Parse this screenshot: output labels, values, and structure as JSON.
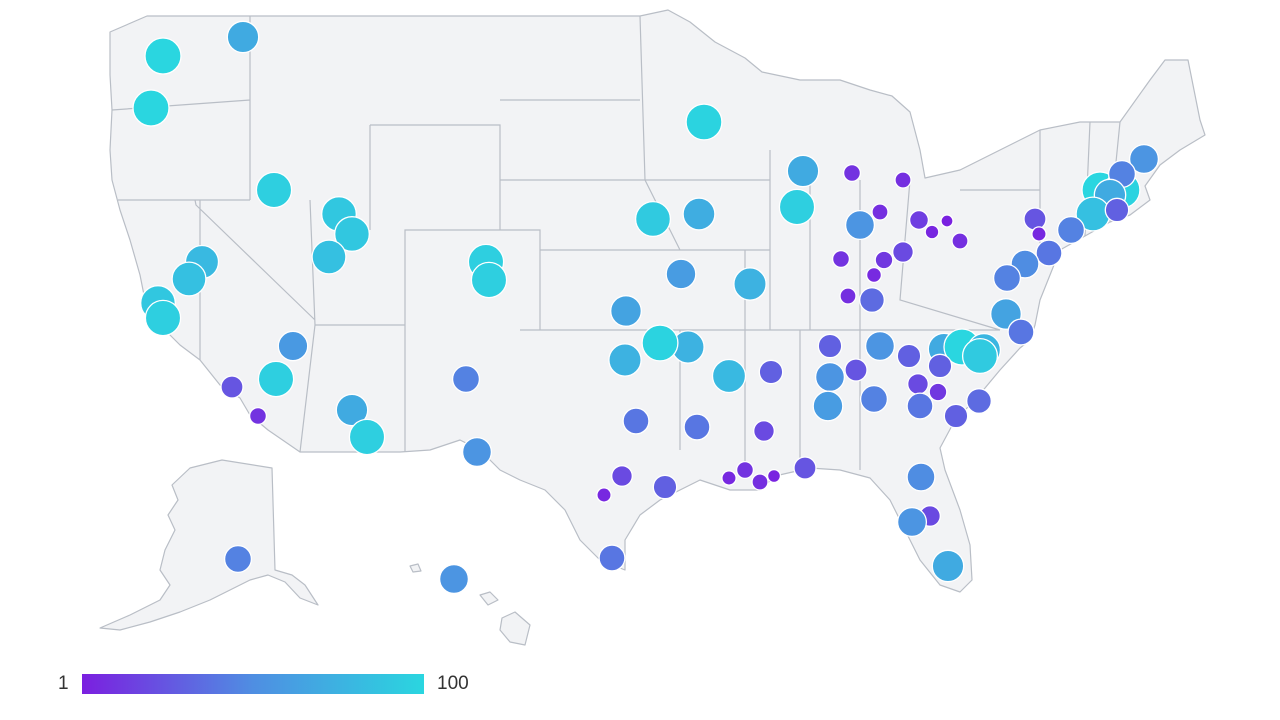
{
  "legend": {
    "min_label": "1",
    "max_label": "100",
    "color_min": "#7b1fe0",
    "color_max": "#2ad6e0"
  },
  "map_colors": {
    "land": "#f2f3f5",
    "border": "#b9bec6",
    "background": "#ffffff"
  },
  "bubble_values": [
    100,
    70,
    100,
    95,
    90,
    90,
    85,
    95,
    95,
    80,
    85,
    90,
    95,
    98,
    70,
    10,
    95,
    92,
    72,
    75,
    60,
    100,
    98,
    55,
    45,
    70,
    85,
    30,
    8,
    8,
    55,
    4,
    15,
    2,
    8,
    20,
    12,
    6,
    10,
    8,
    35,
    25,
    5,
    45,
    40,
    50,
    45,
    65,
    40,
    30,
    70,
    100,
    78,
    92,
    30,
    20,
    12,
    40,
    30,
    35,
    30,
    25,
    55,
    45,
    55,
    60,
    50,
    20,
    55,
    70,
    75,
    98,
    65,
    75,
    80,
    30,
    40,
    20,
    5,
    10,
    8,
    3,
    25,
    40,
    20,
    5,
    30,
    40,
    55,
    45,
    70,
    95,
    58,
    95,
    25,
    10,
    45,
    55,
    60,
    45,
    90,
    78,
    72,
    68,
    70,
    18,
    15,
    10,
    20,
    25,
    45,
    48,
    25,
    50,
    50,
    40,
    45,
    22,
    12,
    18,
    8,
    18,
    10,
    30,
    55,
    75
  ]
}
